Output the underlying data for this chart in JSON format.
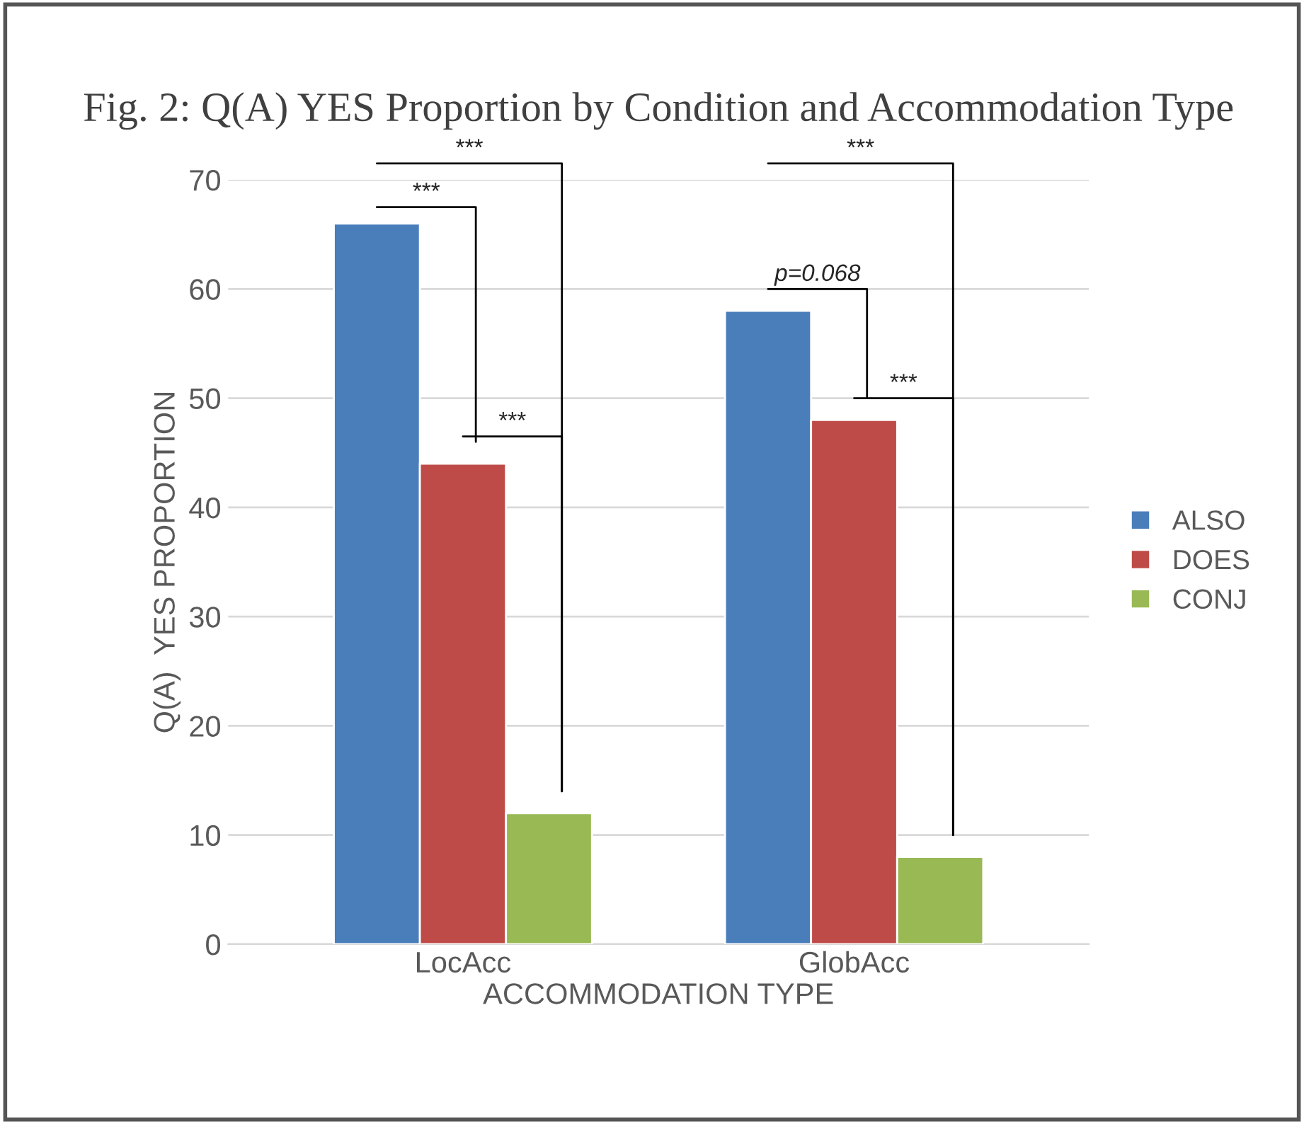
{
  "chart_data": {
    "type": "bar",
    "title": "Fig. 2: Q(A) YES Proportion by Condition and Accommodation Type",
    "xlabel": "ACCOMMODATION TYPE",
    "ylabel": "Q(A)  YES PROPORTION",
    "categories": [
      "LocAcc",
      "GlobAcc"
    ],
    "series": [
      {
        "name": "ALSO",
        "color": "#4a7ebb",
        "values": [
          66,
          58
        ]
      },
      {
        "name": "DOES",
        "color": "#be4b48",
        "values": [
          44,
          48
        ]
      },
      {
        "name": "CONJ",
        "color": "#98b954",
        "values": [
          12,
          8
        ]
      }
    ],
    "ylim": [
      0,
      70
    ],
    "yticks": [
      0,
      10,
      20,
      30,
      40,
      50,
      60,
      70
    ],
    "grid": "y",
    "legend": "right",
    "annotations": [
      "***",
      "***",
      "***",
      "p=0.068",
      "***",
      "***"
    ]
  }
}
